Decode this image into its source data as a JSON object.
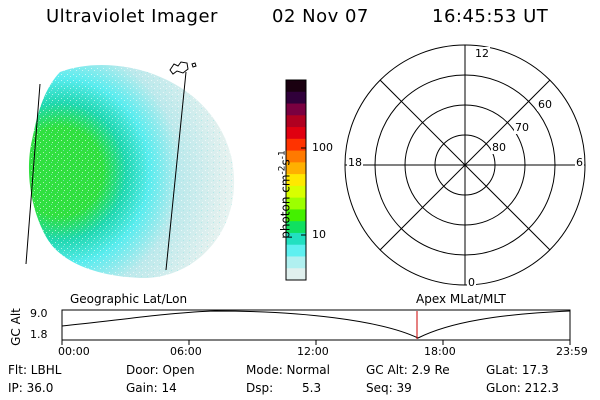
{
  "header": {
    "instrument": "Ultraviolet Imager",
    "date": "02 Nov 07",
    "time": "16:45:53 UT"
  },
  "colorbar": {
    "unit_label": "photon cm",
    "unit_sup1": "-2",
    "unit_s": "s",
    "unit_sup2": "-1",
    "tick_high": "100",
    "tick_low": "10",
    "colors": [
      "#1a0010",
      "#30003a",
      "#7a0040",
      "#b00020",
      "#e00010",
      "#ff3300",
      "#ff7a00",
      "#ffb000",
      "#ffe800",
      "#d8ff00",
      "#9cff00",
      "#44f000",
      "#10e060",
      "#22e0c0",
      "#5ef0f0",
      "#b0f0f0",
      "#e0f0ee"
    ]
  },
  "polar": {
    "top": "12",
    "bottom": "0",
    "left": "18",
    "right": "6",
    "lat_60": "60",
    "lat_70": "70",
    "lat_80": "80"
  },
  "timeline": {
    "axis_label_top": "GC",
    "axis_label_bottom": "Alt",
    "y_max": "9.0",
    "y_min": "1.8",
    "left_title": "Geographic Lat/Lon",
    "right_title": "Apex  MLat/MLT",
    "x_ticks": [
      "00:00",
      "06:00",
      "12:00",
      "18:00",
      "23:59"
    ],
    "marker_color": "#cc0000"
  },
  "info": {
    "flt": "Flt: LBHL",
    "ip": "IP: 36.0",
    "door": "Door: Open",
    "gain": "Gain: 14",
    "mode": "Mode:  Normal",
    "dsp_label": "Dsp:",
    "dsp_value": "5.3",
    "gc_alt": "GC Alt: 2.9 Re",
    "seq": "Seq: 39",
    "glat": "GLat:  17.3",
    "glon": "GLon: 212.3"
  }
}
